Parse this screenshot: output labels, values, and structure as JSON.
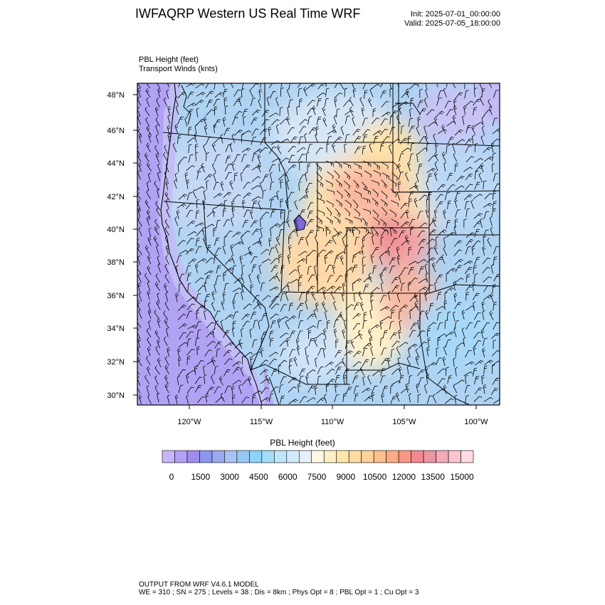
{
  "header": {
    "title": "IWFAQRP Western US Real Time WRF",
    "init": "Init: 2025-07-01_00:00:00",
    "valid": "Valid: 2025-07-05_18:00:00"
  },
  "fields": {
    "primary": "PBL Height   (feet)",
    "secondary": "Transport Winds   (knts)"
  },
  "map": {
    "lat_labels": [
      "48°N",
      "46°N",
      "44°N",
      "42°N",
      "40°N",
      "38°N",
      "36°N",
      "34°N",
      "32°N",
      "30°N"
    ],
    "lon_labels": [
      "120°W",
      "115°W",
      "110°W",
      "105°W",
      "100°W"
    ]
  },
  "colorbar": {
    "title": "PBL Height  (feet)",
    "tick_labels": [
      "0",
      "1500",
      "3000",
      "4500",
      "6000",
      "7500",
      "9000",
      "10500",
      "12000",
      "13500",
      "15000"
    ],
    "colors": [
      "#c8b4ff",
      "#b4a0f5",
      "#a08cf0",
      "#8c96f0",
      "#9baaf0",
      "#a5c3f5",
      "#96c8f5",
      "#8cd2fa",
      "#a5dcfa",
      "#bee6fa",
      "#d2ebfa",
      "#e6f0fa",
      "#fffae6",
      "#fff0c3",
      "#ffe6aa",
      "#ffdca0",
      "#ffd296",
      "#ffbe8c",
      "#ffaa82",
      "#fa9687",
      "#f58791",
      "#eb96a0",
      "#f5aab9",
      "#fac3cd",
      "#ffdce1"
    ]
  },
  "footer": {
    "line1": "OUTPUT FROM WRF V4.6.1 MODEL",
    "line2": "WE = 310 ; SN = 275 ; Levels = 38 ; Dis = 8km ; Phys Opt = 8 ; PBL Opt = 1 ; Cu Opt = 3"
  }
}
